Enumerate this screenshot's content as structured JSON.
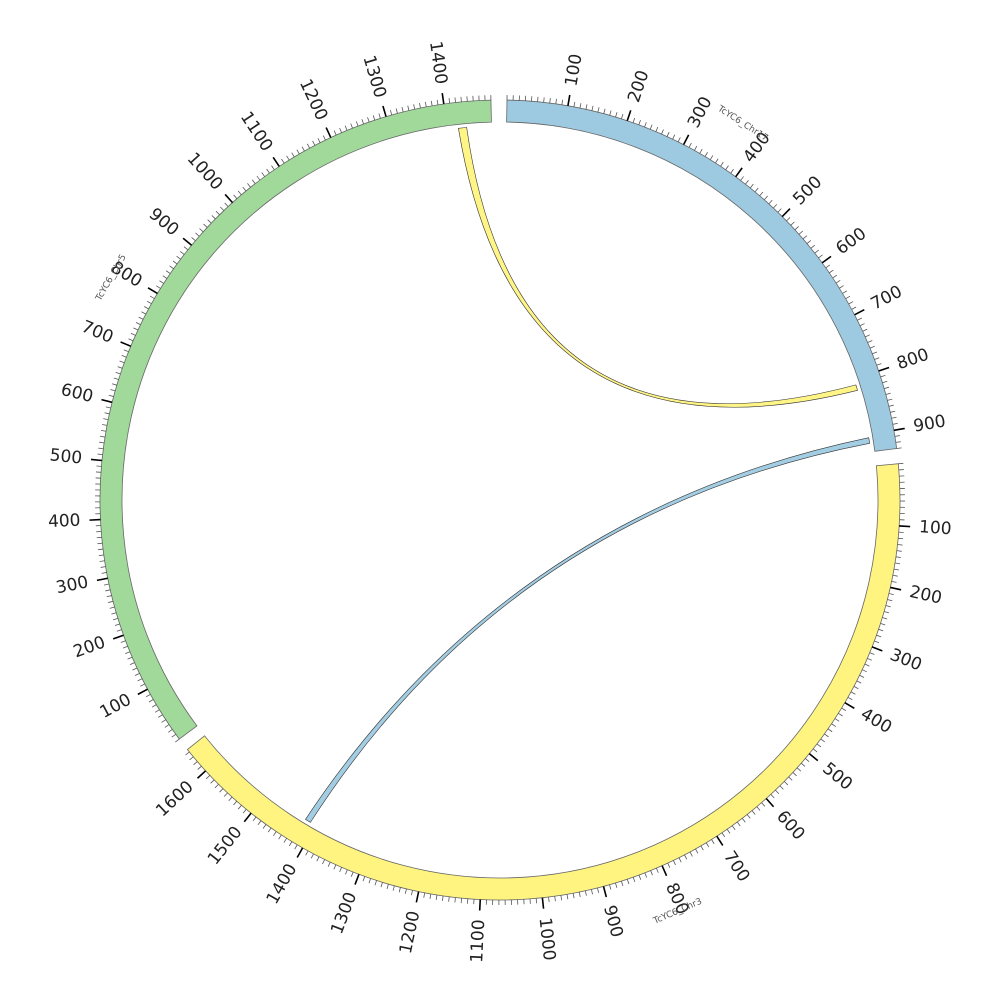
{
  "chart_data": {
    "type": "chord",
    "title": "",
    "segments": [
      {
        "name": "TcYC6_Chr17",
        "length": 930,
        "color": "#9ecae1",
        "major_ticks": [
          100,
          200,
          300,
          400,
          500,
          600,
          700,
          800,
          900
        ]
      },
      {
        "name": "TcYC6_Chr3",
        "length": 1645,
        "color": "#fff480",
        "major_ticks": [
          100,
          200,
          300,
          400,
          500,
          600,
          700,
          800,
          900,
          1000,
          1100,
          1200,
          1300,
          1400,
          1500,
          1600
        ]
      },
      {
        "name": "TcYC6_Chr5",
        "length": 1480,
        "color": "#a1d99b",
        "major_ticks": [
          100,
          200,
          300,
          400,
          500,
          600,
          700,
          800,
          900,
          1000,
          1100,
          1200,
          1300,
          1400
        ]
      }
    ],
    "tick_interval_minor": 10,
    "tick_interval_major": 100,
    "links": [
      {
        "source": "TcYC6_Chr5",
        "source_start": 1420,
        "source_end": 1435,
        "target": "TcYC6_Chr17",
        "target_start": 810,
        "target_end": 820,
        "color": "#fff480"
      },
      {
        "source": "TcYC6_Chr17",
        "source_start": 905,
        "source_end": 915,
        "target": "TcYC6_Chr3",
        "target_start": 1410,
        "target_end": 1420,
        "color": "#9ecae1"
      }
    ]
  }
}
